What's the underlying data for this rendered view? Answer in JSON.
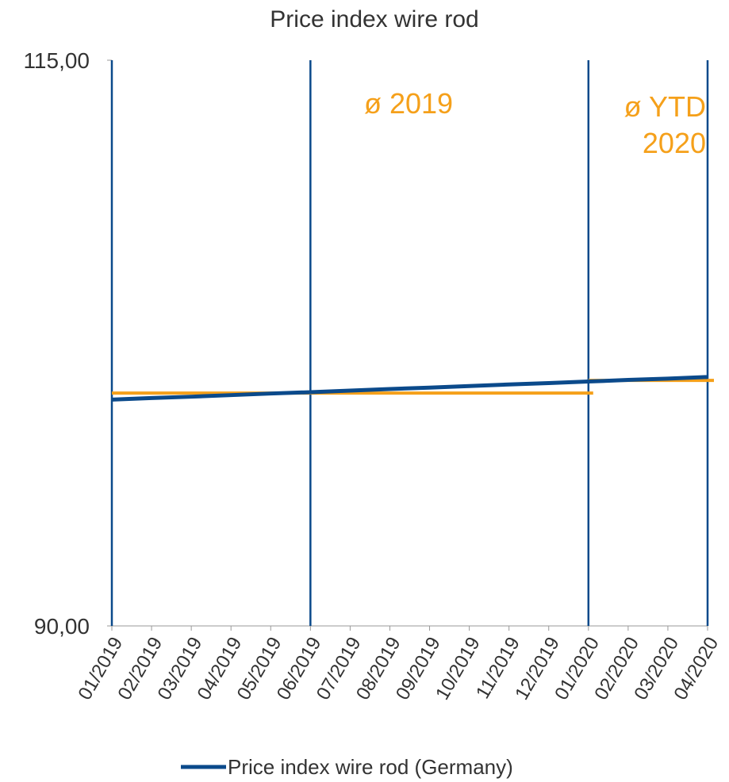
{
  "chart_data": {
    "type": "line",
    "title": "Price index wire rod",
    "categories": [
      "01/2019",
      "02/2019",
      "03/2019",
      "04/2019",
      "05/2019",
      "06/2019",
      "07/2019",
      "08/2019",
      "09/2019",
      "10/2019",
      "11/2019",
      "12/2019",
      "01/2020",
      "02/2020",
      "03/2020",
      "04/2020"
    ],
    "series": [
      {
        "name": "Price index wire rod (Germany)",
        "color": "#0b4a8b",
        "values": [
          100.0,
          100.07,
          100.13,
          100.2,
          100.27,
          100.33,
          100.4,
          100.47,
          100.53,
          100.6,
          100.67,
          100.73,
          100.8,
          100.87,
          100.93,
          101.0
        ]
      }
    ],
    "ylim": [
      90,
      115
    ],
    "yticks": [
      {
        "value": 90,
        "label": "90,00"
      },
      {
        "value": 115,
        "label": "115,00"
      }
    ],
    "vlines": [
      "01/2019",
      "06/2019",
      "01/2020",
      "04/2020"
    ],
    "reference_lines": [
      {
        "label": "ø 2019",
        "value": 100.29,
        "from": "01/2019",
        "to": "01/2020",
        "color": "#f5a01a"
      },
      {
        "label": "ø YTD 2020",
        "value": 100.85,
        "from": "01/2020",
        "to": "04/2020",
        "color": "#f5a01a"
      }
    ],
    "legend": "bottom"
  }
}
